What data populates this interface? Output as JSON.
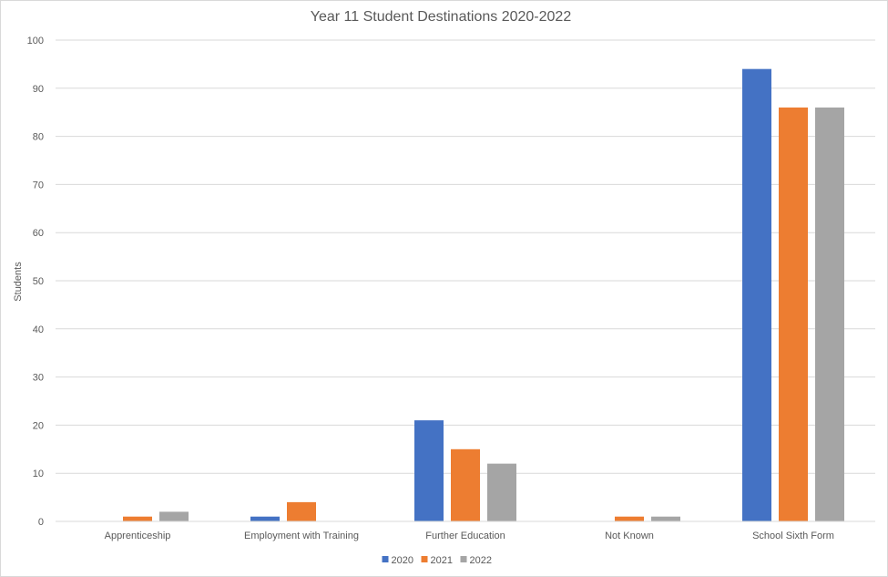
{
  "chart_data": {
    "type": "bar",
    "title": "Year 11 Student Destinations 2020-2022",
    "xlabel": "",
    "ylabel": "Students",
    "ylim": [
      0,
      100
    ],
    "yticks": [
      0,
      10,
      20,
      30,
      40,
      50,
      60,
      70,
      80,
      90,
      100
    ],
    "grid": true,
    "legend_position": "bottom",
    "categories": [
      "Apprenticeship",
      "Employment with Training",
      "Further Education",
      "Not Known",
      "School Sixth Form"
    ],
    "series": [
      {
        "name": "2020",
        "color": "#4472c4",
        "values": [
          0,
          1,
          21,
          0,
          94
        ]
      },
      {
        "name": "2021",
        "color": "#ed7d31",
        "values": [
          1,
          4,
          15,
          1,
          86
        ]
      },
      {
        "name": "2022",
        "color": "#a5a5a5",
        "values": [
          2,
          0,
          12,
          1,
          86
        ]
      }
    ]
  }
}
